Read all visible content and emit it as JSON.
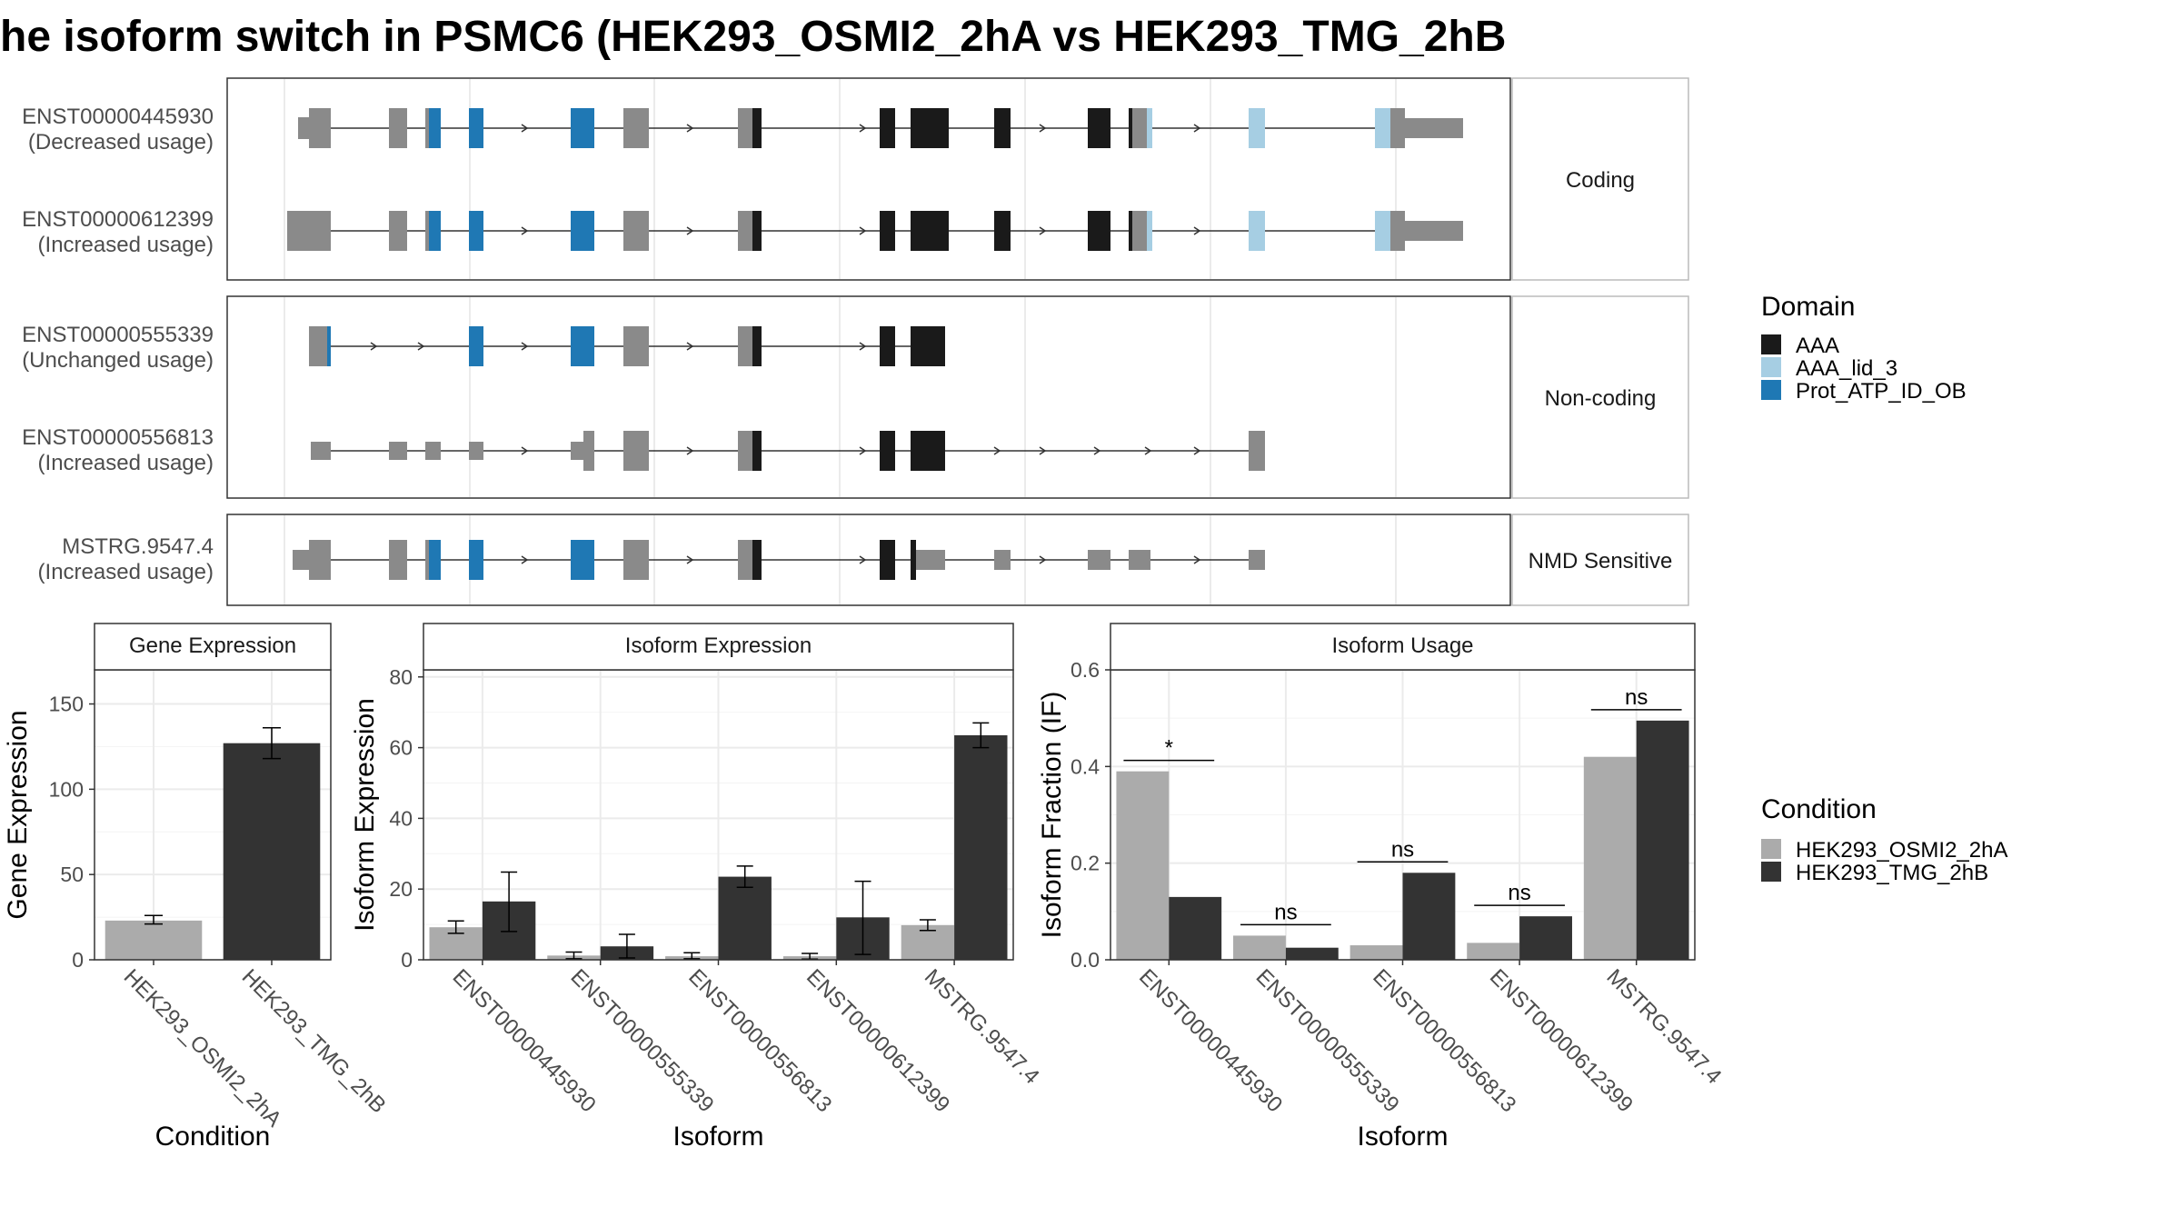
{
  "title": "he isoform switch in PSMC6 (HEK293_OSMI2_2hA vs HEK293_TMG_2hB",
  "structure": {
    "categories": [
      "Coding",
      "Non-coding",
      "NMD Sensitive"
    ],
    "transcripts": [
      {
        "id": "ENST00000445930",
        "usage": "(Decreased usage)",
        "category": "Coding"
      },
      {
        "id": "ENST00000612399",
        "usage": "(Increased usage)",
        "category": "Coding"
      },
      {
        "id": "ENST00000555339",
        "usage": "(Unchanged usage)",
        "category": "Non-coding"
      },
      {
        "id": "ENST00000556813",
        "usage": "(Increased usage)",
        "category": "Non-coding"
      },
      {
        "id": "MSTRG.9547.4",
        "usage": "(Increased usage)",
        "category": "NMD Sensitive"
      }
    ],
    "domain_legend": {
      "title": "Domain",
      "items": [
        {
          "name": "AAA",
          "color": "#1a1a1a"
        },
        {
          "name": "AAA_lid_3",
          "color": "#a6cee3"
        },
        {
          "name": "Prot_ATP_ID_OB",
          "color": "#1f78b4"
        }
      ]
    }
  },
  "condition_legend": {
    "title": "Condition",
    "items": [
      {
        "name": "HEK293_OSMI2_2hA",
        "color": "#ababab"
      },
      {
        "name": "HEK293_TMG_2hB",
        "color": "#333333"
      }
    ]
  },
  "chart_data": [
    {
      "type": "bar",
      "title": "Gene Expression",
      "xlabel": "Condition",
      "ylabel": "Gene Expression",
      "ylim": [
        0,
        170
      ],
      "yticks": [
        0,
        50,
        100,
        150
      ],
      "categories": [
        "HEK293_OSMI2_2hA",
        "HEK293_TMG_2hB"
      ],
      "values": [
        23,
        127
      ],
      "errors": [
        [
          21,
          26
        ],
        [
          118,
          136
        ]
      ],
      "colors": [
        "#ababab",
        "#333333"
      ]
    },
    {
      "type": "bar",
      "title": "Isoform Expression",
      "xlabel": "Isoform",
      "ylabel": "Isoform Expression",
      "ylim": [
        0,
        82
      ],
      "yticks": [
        0,
        20,
        40,
        60,
        80
      ],
      "categories": [
        "ENST00000445930",
        "ENST00000555339",
        "ENST00000556813",
        "ENST00000612399",
        "MSTRG.9547.4"
      ],
      "series": [
        {
          "name": "HEK293_OSMI2_2hA",
          "values": [
            9.2,
            1.2,
            1.0,
            1.0,
            9.8
          ],
          "errors": [
            [
              7.5,
              11.0
            ],
            [
              0.3,
              2.2
            ],
            [
              0.3,
              2.0
            ],
            [
              0.2,
              1.8
            ],
            [
              8.3,
              11.3
            ]
          ]
        },
        {
          "name": "HEK293_TMG_2hB",
          "values": [
            16.5,
            3.8,
            23.5,
            12.0,
            63.5
          ],
          "errors": [
            [
              8.0,
              24.8
            ],
            [
              0.5,
              7.2
            ],
            [
              20.5,
              26.5
            ],
            [
              1.5,
              22.2
            ],
            [
              60.0,
              67.0
            ]
          ]
        }
      ]
    },
    {
      "type": "bar",
      "title": "Isoform Usage",
      "xlabel": "Isoform",
      "ylabel": "Isoform Fraction (IF)",
      "ylim": [
        0,
        0.6
      ],
      "yticks": [
        "0.0",
        "0.2",
        "0.4",
        "0.6"
      ],
      "categories": [
        "ENST00000445930",
        "ENST00000555339",
        "ENST00000556813",
        "ENST00000612399",
        "MSTRG.9547.4"
      ],
      "series": [
        {
          "name": "HEK293_OSMI2_2hA",
          "values": [
            0.39,
            0.05,
            0.03,
            0.035,
            0.42
          ]
        },
        {
          "name": "HEK293_TMG_2hB",
          "values": [
            0.13,
            0.025,
            0.18,
            0.09,
            0.495
          ]
        }
      ],
      "significance": [
        "*",
        "ns",
        "ns",
        "ns",
        "ns"
      ]
    }
  ]
}
